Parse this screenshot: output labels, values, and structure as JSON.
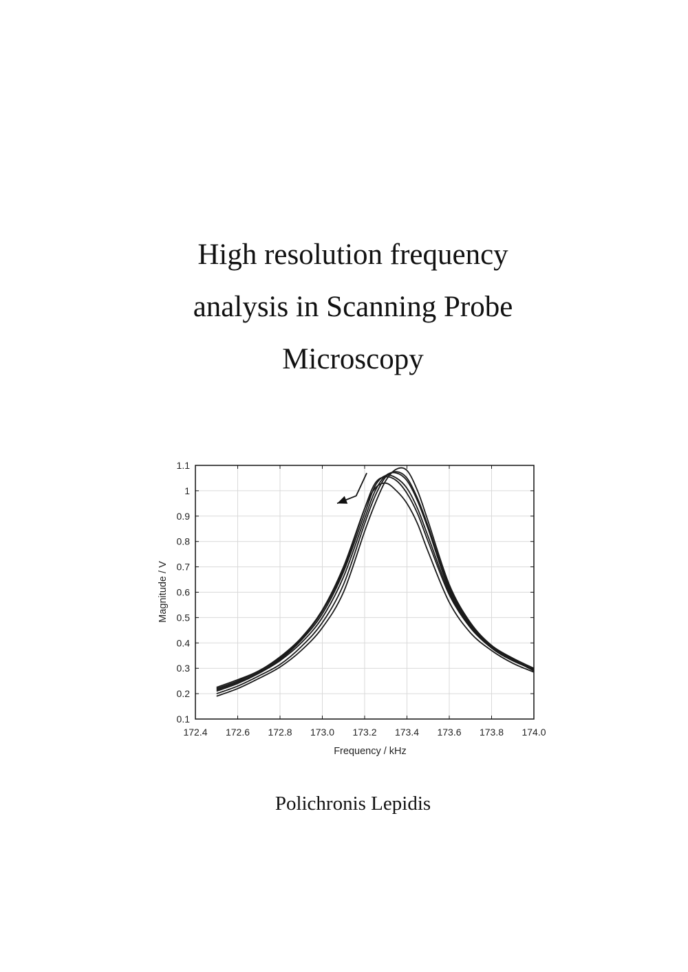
{
  "document": {
    "title_lines": [
      "High resolution frequency",
      "analysis in Scanning Probe",
      "Microscopy"
    ],
    "author": "Polichronis Lepidis"
  },
  "chart_data": {
    "type": "line",
    "title": "",
    "xlabel": "Frequency / kHz",
    "ylabel": "Magnitude / V",
    "xlim": [
      172.4,
      174.0
    ],
    "ylim": [
      0.1,
      1.1
    ],
    "xticks": [
      "172.4",
      "172.6",
      "172.8",
      "173.0",
      "173.2",
      "173.4",
      "173.6",
      "173.8",
      "174.0"
    ],
    "yticks": [
      "0.1",
      "0.2",
      "0.3",
      "0.4",
      "0.5",
      "0.6",
      "0.7",
      "0.8",
      "0.9",
      "1",
      "1.1"
    ],
    "grid": true,
    "line_color": "#1a1a1a",
    "x": [
      172.5,
      172.6,
      172.7,
      172.8,
      172.9,
      173.0,
      173.1,
      173.2,
      173.25,
      173.3,
      173.35,
      173.4,
      173.45,
      173.5,
      173.6,
      173.7,
      173.8,
      173.9,
      174.0
    ],
    "series": [
      {
        "values": [
          0.19,
          0.22,
          0.26,
          0.305,
          0.37,
          0.46,
          0.6,
          0.84,
          0.95,
          1.04,
          1.085,
          1.08,
          1.0,
          0.88,
          0.63,
          0.48,
          0.39,
          0.335,
          0.29
        ]
      },
      {
        "values": [
          0.2,
          0.23,
          0.27,
          0.315,
          0.385,
          0.48,
          0.63,
          0.87,
          0.98,
          1.055,
          1.075,
          1.05,
          0.97,
          0.86,
          0.62,
          0.475,
          0.39,
          0.34,
          0.3
        ]
      },
      {
        "values": [
          0.21,
          0.24,
          0.28,
          0.33,
          0.4,
          0.5,
          0.66,
          0.89,
          1.0,
          1.06,
          1.07,
          1.04,
          0.96,
          0.85,
          0.61,
          0.47,
          0.385,
          0.335,
          0.295
        ]
      },
      {
        "values": [
          0.215,
          0.245,
          0.285,
          0.335,
          0.41,
          0.515,
          0.68,
          0.91,
          1.02,
          1.06,
          1.05,
          1.01,
          0.93,
          0.82,
          0.6,
          0.465,
          0.38,
          0.33,
          0.295
        ]
      },
      {
        "values": [
          0.22,
          0.25,
          0.29,
          0.34,
          0.415,
          0.525,
          0.69,
          0.93,
          1.03,
          1.055,
          1.04,
          0.99,
          0.91,
          0.8,
          0.59,
          0.46,
          0.38,
          0.33,
          0.295
        ]
      },
      {
        "values": [
          0.225,
          0.255,
          0.29,
          0.345,
          0.42,
          0.53,
          0.7,
          0.93,
          1.01,
          1.03,
          1.0,
          0.95,
          0.87,
          0.76,
          0.56,
          0.44,
          0.37,
          0.32,
          0.285
        ]
      }
    ],
    "annotations": [
      {
        "type": "arrow",
        "points": [
          [
            173.21,
            1.07
          ],
          [
            173.16,
            0.98
          ],
          [
            173.07,
            0.95
          ]
        ]
      }
    ]
  }
}
